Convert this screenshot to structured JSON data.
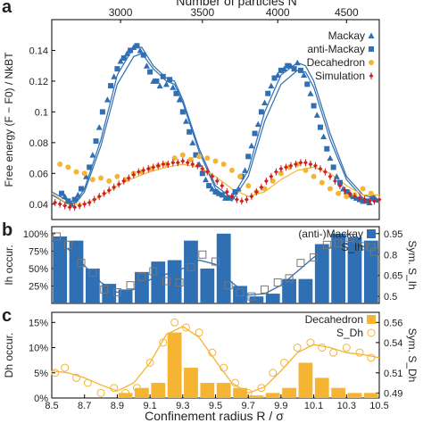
{
  "top_axis": {
    "label": "Number of particles N",
    "ticks": [
      3000,
      3500,
      4000,
      4500
    ],
    "tick_radius": [
      8.92,
      9.42,
      9.88,
      10.3
    ]
  },
  "bottom_axis": {
    "label": "Confinement radius R / σ",
    "ticks": [
      "8.5",
      "8.7",
      "8.9",
      "9.1",
      "9.3",
      "9.5",
      "9.7",
      "9.9",
      "10.1",
      "10.3",
      "10.5"
    ]
  },
  "panels": {
    "a": {
      "letter": "a"
    },
    "b": {
      "letter": "b"
    },
    "c": {
      "letter": "c"
    }
  },
  "colors": {
    "blue": "#2f6fb3",
    "orange": "#f5b432",
    "red": "#cc2222",
    "black": "#000000"
  },
  "chart_data": [
    {
      "type": "scatter",
      "panel": "a",
      "ylabel": "Free energy (F − F0) / NkBT",
      "xlim": [
        8.5,
        10.5
      ],
      "ylim": [
        0.03,
        0.16
      ],
      "yticks": [
        "0.04",
        "0.06",
        "0.08",
        "0.1",
        "0.12",
        "0.14"
      ],
      "legend_position": "top-right",
      "series": [
        {
          "name": "Mackay",
          "marker": "triangle",
          "color": "#2f6fb3",
          "x": [
            8.58,
            8.62,
            8.66,
            8.71,
            8.75,
            8.79,
            8.84,
            8.88,
            8.92,
            8.96,
            9.0,
            9.04,
            9.08,
            9.12,
            9.16,
            9.2,
            9.24,
            9.28,
            9.32,
            9.36,
            9.4,
            9.44,
            9.48,
            9.52,
            9.56,
            9.6,
            9.64,
            9.68,
            9.72,
            9.76,
            9.8,
            9.84,
            9.88,
            9.92,
            9.96,
            10.0,
            10.04,
            10.08,
            10.12,
            10.16,
            10.2,
            10.24,
            10.28,
            10.32,
            10.36,
            10.4,
            10.44,
            10.48
          ],
          "y": [
            0.045,
            0.04,
            0.046,
            0.058,
            0.072,
            0.09,
            0.108,
            0.123,
            0.133,
            0.138,
            0.142,
            0.14,
            0.13,
            0.12,
            0.117,
            0.118,
            0.116,
            0.108,
            0.094,
            0.08,
            0.066,
            0.056,
            0.05,
            0.047,
            0.044,
            0.045,
            0.05,
            0.062,
            0.078,
            0.092,
            0.106,
            0.117,
            0.124,
            0.128,
            0.13,
            0.132,
            0.124,
            0.112,
            0.098,
            0.084,
            0.07,
            0.058,
            0.05,
            0.046,
            0.044,
            0.042,
            0.041,
            0.043
          ]
        },
        {
          "name": "anti-Mackay",
          "marker": "square",
          "color": "#2f6fb3",
          "x": [
            8.56,
            8.6,
            8.64,
            8.68,
            8.73,
            8.77,
            8.81,
            8.86,
            8.9,
            8.94,
            8.98,
            9.02,
            9.06,
            9.1,
            9.14,
            9.18,
            9.22,
            9.26,
            9.3,
            9.34,
            9.38,
            9.42,
            9.46,
            9.5,
            9.54,
            9.58,
            9.62,
            9.66,
            9.7,
            9.74,
            9.78,
            9.82,
            9.86,
            9.9,
            9.94,
            9.98,
            10.02,
            10.06,
            10.1,
            10.14,
            10.18,
            10.22,
            10.26,
            10.3,
            10.34,
            10.38,
            10.42,
            10.46
          ],
          "y": [
            0.047,
            0.042,
            0.043,
            0.05,
            0.064,
            0.081,
            0.1,
            0.117,
            0.128,
            0.135,
            0.14,
            0.143,
            0.137,
            0.126,
            0.12,
            0.123,
            0.121,
            0.112,
            0.1,
            0.087,
            0.072,
            0.06,
            0.052,
            0.048,
            0.046,
            0.044,
            0.048,
            0.058,
            0.071,
            0.086,
            0.1,
            0.112,
            0.122,
            0.127,
            0.13,
            0.128,
            0.127,
            0.118,
            0.104,
            0.09,
            0.076,
            0.064,
            0.054,
            0.048,
            0.045,
            0.043,
            0.042,
            0.044
          ]
        },
        {
          "name": "Decahedron",
          "marker": "circle",
          "color": "#f5b432",
          "x": [
            8.55,
            8.6,
            8.65,
            8.7,
            8.75,
            8.8,
            8.85,
            8.9,
            8.95,
            9.0,
            9.05,
            9.1,
            9.15,
            9.2,
            9.25,
            9.3,
            9.35,
            9.4,
            9.45,
            9.5,
            9.55,
            9.6,
            9.65,
            9.7,
            9.75,
            9.8,
            9.85,
            9.9,
            9.95,
            10.0,
            10.05,
            10.1,
            10.15,
            10.2,
            10.25,
            10.3,
            10.35,
            10.4,
            10.45
          ],
          "y": [
            0.066,
            0.064,
            0.061,
            0.06,
            0.056,
            0.057,
            0.055,
            0.058,
            0.056,
            0.06,
            0.061,
            0.063,
            0.065,
            0.066,
            0.07,
            0.072,
            0.069,
            0.071,
            0.07,
            0.068,
            0.066,
            0.062,
            0.058,
            0.052,
            0.048,
            0.05,
            0.055,
            0.06,
            0.064,
            0.066,
            0.062,
            0.058,
            0.054,
            0.05,
            0.047,
            0.045,
            0.046,
            0.05,
            0.047
          ]
        },
        {
          "name": "Simulation",
          "marker": "diamond-errorbar",
          "color": "#cc2222",
          "x": [
            8.52,
            8.55,
            8.58,
            8.61,
            8.64,
            8.67,
            8.7,
            8.73,
            8.76,
            8.79,
            8.82,
            8.85,
            8.88,
            8.91,
            8.94,
            8.97,
            9.0,
            9.03,
            9.06,
            9.09,
            9.12,
            9.15,
            9.18,
            9.21,
            9.24,
            9.27,
            9.3,
            9.33,
            9.36,
            9.39,
            9.42,
            9.45,
            9.48,
            9.51,
            9.54,
            9.57,
            9.6,
            9.63,
            9.66,
            9.69,
            9.72,
            9.75,
            9.78,
            9.81,
            9.84,
            9.87,
            9.9,
            9.93,
            9.96,
            9.99,
            10.02,
            10.05,
            10.08,
            10.11,
            10.14,
            10.17,
            10.2,
            10.23,
            10.26,
            10.29,
            10.32,
            10.35,
            10.38,
            10.41,
            10.44,
            10.47,
            10.5
          ],
          "y": [
            0.041,
            0.04,
            0.039,
            0.038,
            0.038,
            0.039,
            0.04,
            0.041,
            0.043,
            0.045,
            0.047,
            0.049,
            0.051,
            0.053,
            0.055,
            0.057,
            0.059,
            0.061,
            0.062,
            0.063,
            0.064,
            0.065,
            0.066,
            0.066,
            0.067,
            0.067,
            0.068,
            0.067,
            0.066,
            0.065,
            0.063,
            0.061,
            0.058,
            0.055,
            0.052,
            0.048,
            0.045,
            0.043,
            0.042,
            0.043,
            0.045,
            0.048,
            0.051,
            0.055,
            0.058,
            0.061,
            0.063,
            0.064,
            0.065,
            0.066,
            0.067,
            0.067,
            0.066,
            0.065,
            0.063,
            0.061,
            0.058,
            0.055,
            0.052,
            0.049,
            0.047,
            0.045,
            0.044,
            0.043,
            0.042,
            0.042,
            0.043
          ]
        }
      ],
      "lines": [
        {
          "name": "Mackay fit",
          "color": "#2f6fb3",
          "x": [
            8.5,
            8.6,
            8.65,
            8.7,
            8.8,
            8.9,
            9.0,
            9.05,
            9.12,
            9.2,
            9.25,
            9.3,
            9.4,
            9.5,
            9.6,
            9.7,
            9.8,
            9.9,
            10.0,
            10.05,
            10.1,
            10.2,
            10.3,
            10.4,
            10.5
          ],
          "y": [
            0.046,
            0.04,
            0.041,
            0.048,
            0.078,
            0.118,
            0.136,
            0.138,
            0.128,
            0.12,
            0.118,
            0.106,
            0.074,
            0.05,
            0.042,
            0.058,
            0.094,
            0.118,
            0.127,
            0.126,
            0.116,
            0.082,
            0.056,
            0.044,
            0.041
          ]
        },
        {
          "name": "anti-Mackay fit",
          "color": "#2f6fb3",
          "x": [
            8.5,
            8.6,
            8.65,
            8.7,
            8.8,
            8.9,
            9.0,
            9.05,
            9.12,
            9.2,
            9.25,
            9.3,
            9.4,
            9.5,
            9.6,
            9.7,
            9.8,
            9.9,
            10.0,
            10.05,
            10.1,
            10.2,
            10.3,
            10.4,
            10.5
          ],
          "y": [
            0.048,
            0.042,
            0.042,
            0.05,
            0.082,
            0.124,
            0.142,
            0.142,
            0.13,
            0.122,
            0.12,
            0.108,
            0.076,
            0.052,
            0.044,
            0.062,
            0.1,
            0.124,
            0.132,
            0.13,
            0.12,
            0.086,
            0.058,
            0.046,
            0.043
          ]
        },
        {
          "name": "Decahedron fit",
          "color": "#f5b432",
          "x": [
            8.5,
            8.6,
            8.7,
            8.8,
            8.9,
            9.0,
            9.1,
            9.2,
            9.3,
            9.4,
            9.5,
            9.6,
            9.7,
            9.8,
            9.9,
            10.0,
            10.1,
            10.2,
            10.3,
            10.4,
            10.5
          ],
          "y": [
            0.047,
            0.04,
            0.04,
            0.045,
            0.052,
            0.057,
            0.061,
            0.064,
            0.066,
            0.064,
            0.058,
            0.05,
            0.045,
            0.048,
            0.056,
            0.062,
            0.064,
            0.06,
            0.052,
            0.046,
            0.046
          ]
        }
      ]
    },
    {
      "type": "bar",
      "panel": "b",
      "ylabel": "Ih occur.",
      "ylabel_right": "Sym. S_Ih",
      "xlim": [
        8.5,
        10.5
      ],
      "ylim": [
        0,
        1.1
      ],
      "yticks_left": [
        "25%",
        "50%",
        "75%",
        "100%"
      ],
      "yticks_right": [
        "0.5",
        "0.65",
        "0.8",
        "0.95"
      ],
      "legend_position": "top-right",
      "legend": [
        {
          "name": "(anti-)Mackay",
          "symbol": "S_Ih"
        }
      ],
      "bars": {
        "name": "(anti-)Mackay",
        "color": "#2f6fb3",
        "x": [
          8.55,
          8.65,
          8.75,
          8.85,
          8.95,
          9.05,
          9.15,
          9.25,
          9.35,
          9.45,
          9.55,
          9.65,
          9.75,
          9.85,
          9.95,
          10.05,
          10.15,
          10.25,
          10.35,
          10.45
        ],
        "values": [
          0.96,
          0.9,
          0.5,
          0.28,
          0.2,
          0.45,
          0.6,
          0.62,
          0.9,
          0.5,
          1.0,
          0.25,
          0.1,
          0.14,
          0.35,
          0.35,
          0.85,
          1.0,
          0.95,
          0.9
        ]
      },
      "symmetry": {
        "name": "S_Ih",
        "marker": "open-square",
        "color": "#777777",
        "x": [
          8.53,
          8.6,
          8.68,
          8.75,
          8.82,
          8.9,
          8.98,
          9.05,
          9.12,
          9.2,
          9.28,
          9.35,
          9.42,
          9.5,
          9.58,
          9.65,
          9.72,
          9.8,
          9.88,
          9.95,
          10.02,
          10.1,
          10.18,
          10.25,
          10.32,
          10.4,
          10.47
        ],
        "values": [
          0.93,
          0.87,
          0.74,
          0.67,
          0.55,
          0.53,
          0.58,
          0.64,
          0.68,
          0.61,
          0.6,
          0.71,
          0.8,
          0.75,
          0.58,
          0.53,
          0.5,
          0.55,
          0.6,
          0.63,
          0.74,
          0.78,
          0.87,
          0.88,
          0.92,
          0.86,
          0.82
        ]
      },
      "fit": {
        "name": "S_Ih fit",
        "color": "#2f6fb3",
        "x": [
          8.5,
          8.6,
          8.7,
          8.8,
          8.9,
          9.0,
          9.1,
          9.2,
          9.3,
          9.4,
          9.5,
          9.6,
          9.7,
          9.8,
          9.9,
          10.0,
          10.1,
          10.2,
          10.3,
          10.4,
          10.5
        ],
        "values": [
          0.9,
          0.84,
          0.72,
          0.6,
          0.53,
          0.55,
          0.62,
          0.66,
          0.7,
          0.76,
          0.73,
          0.6,
          0.51,
          0.52,
          0.58,
          0.68,
          0.78,
          0.85,
          0.88,
          0.86,
          0.8
        ]
      }
    },
    {
      "type": "bar",
      "panel": "c",
      "ylabel": "Dh occur.",
      "ylabel_right": "Sym. S_Dh",
      "xlabel": "Confinement radius R / σ",
      "xlim": [
        8.5,
        10.5
      ],
      "ylim": [
        0,
        0.17
      ],
      "yticks_left": [
        "0%",
        "5%",
        "10%",
        "15%"
      ],
      "yticks_right": [
        "0.49",
        "0.51",
        "0.54",
        "0.56"
      ],
      "legend_position": "top-right",
      "legend": [
        {
          "name": "Decahedron",
          "symbol": "S_Dh"
        }
      ],
      "bars": {
        "name": "Decahedron",
        "color": "#f5b432",
        "x": [
          8.55,
          8.65,
          8.75,
          8.85,
          8.95,
          9.05,
          9.15,
          9.25,
          9.35,
          9.45,
          9.55,
          9.65,
          9.75,
          9.85,
          9.95,
          10.05,
          10.15,
          10.25,
          10.35,
          10.45
        ],
        "values": [
          0.0,
          0.0,
          0.0,
          0.0,
          0.01,
          0.02,
          0.03,
          0.13,
          0.06,
          0.03,
          0.03,
          0.02,
          0.005,
          0.01,
          0.02,
          0.07,
          0.04,
          0.02,
          0.01,
          0.01
        ]
      },
      "symmetry": {
        "name": "S_Dh",
        "marker": "open-circle",
        "color": "#f5b432",
        "x": [
          8.52,
          8.58,
          8.65,
          8.72,
          8.8,
          8.88,
          8.95,
          9.02,
          9.1,
          9.18,
          9.25,
          9.32,
          9.4,
          9.48,
          9.55,
          9.62,
          9.7,
          9.78,
          9.85,
          9.92,
          10.0,
          10.08,
          10.15,
          10.22,
          10.3,
          10.38,
          10.45
        ],
        "values": [
          0.51,
          0.515,
          0.505,
          0.5,
          0.49,
          0.495,
          0.49,
          0.495,
          0.52,
          0.54,
          0.56,
          0.555,
          0.55,
          0.53,
          0.515,
          0.5,
          0.49,
          0.495,
          0.51,
          0.52,
          0.535,
          0.54,
          0.535,
          0.53,
          0.535,
          0.53,
          0.525
        ]
      },
      "fit": {
        "name": "S_Dh fit",
        "color": "#f5b432",
        "x": [
          8.5,
          8.6,
          8.7,
          8.8,
          8.9,
          9.0,
          9.1,
          9.2,
          9.3,
          9.4,
          9.5,
          9.6,
          9.7,
          9.8,
          9.9,
          10.0,
          10.1,
          10.2,
          10.3,
          10.4,
          10.5
        ],
        "values": [
          0.512,
          0.51,
          0.505,
          0.498,
          0.492,
          0.5,
          0.52,
          0.548,
          0.556,
          0.545,
          0.522,
          0.5,
          0.49,
          0.496,
          0.512,
          0.53,
          0.538,
          0.535,
          0.53,
          0.528,
          0.525
        ]
      }
    }
  ]
}
